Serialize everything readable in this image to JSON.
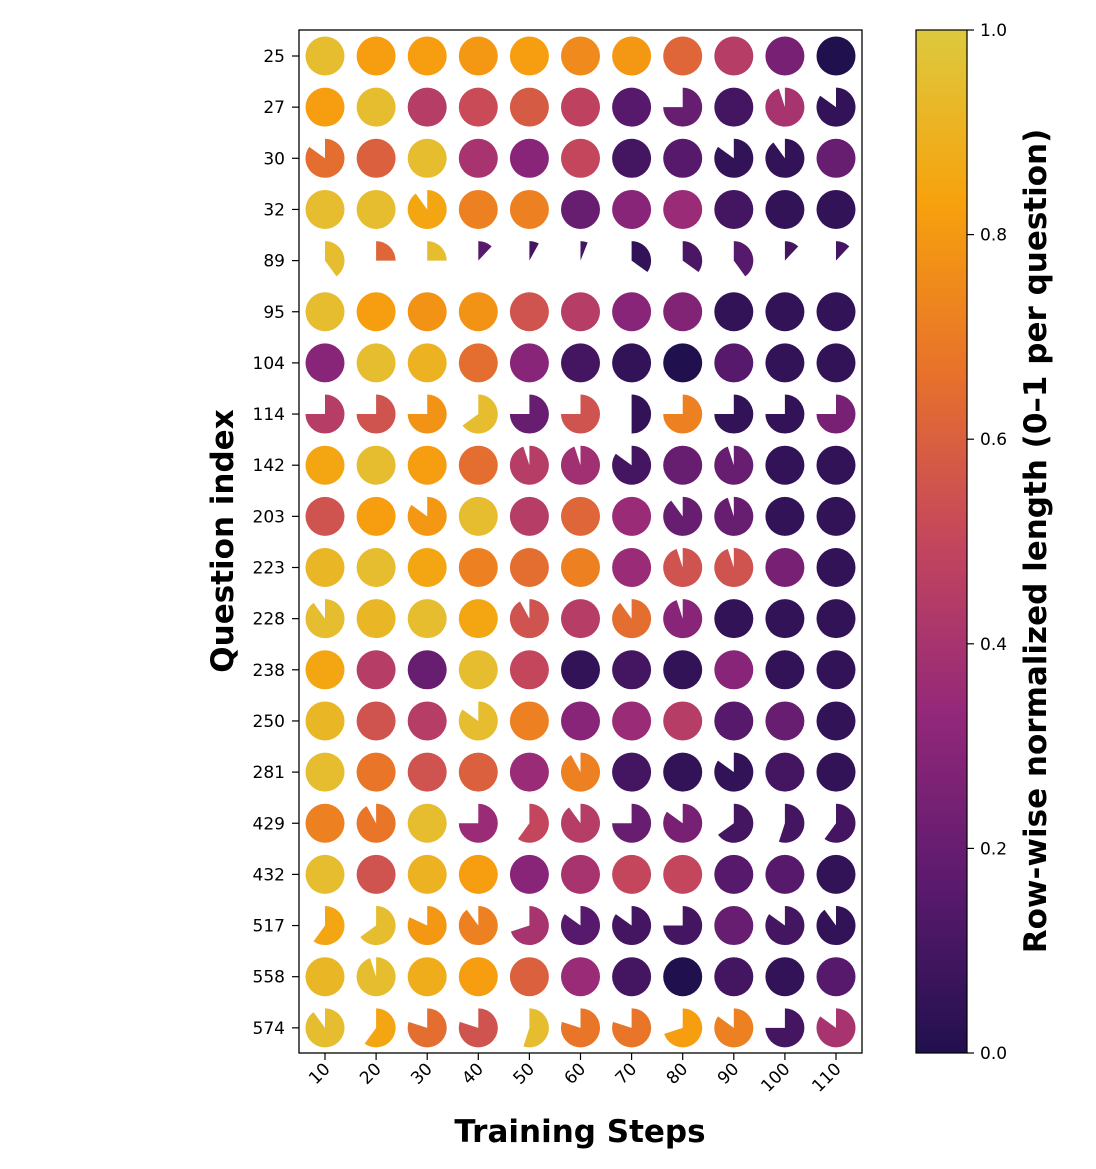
{
  "chart_data": {
    "type": "heatmap",
    "subtype": "pie-glyph grid",
    "xlabel": "Training Steps",
    "ylabel": "Question index",
    "x": [
      "10",
      "20",
      "30",
      "40",
      "50",
      "60",
      "70",
      "80",
      "90",
      "100",
      "110"
    ],
    "y": [
      "25",
      "27",
      "30",
      "32",
      "89",
      "95",
      "104",
      "114",
      "142",
      "203",
      "223",
      "228",
      "238",
      "250",
      "281",
      "429",
      "432",
      "517",
      "558",
      "574"
    ],
    "colorbar": {
      "label": "Row-wise normalized length (0–1 per question)",
      "range": [
        0,
        1
      ],
      "ticks": [
        "0.0",
        "0.2",
        "0.4",
        "0.6",
        "0.8",
        "1.0"
      ],
      "colormap": "plasma-like",
      "stops": [
        "#21104e",
        "#5c1a6e",
        "#94287a",
        "#c4465d",
        "#e8722a",
        "#f7a20d",
        "#ddc93e"
      ]
    },
    "values": [
      [
        0.95,
        0.82,
        0.82,
        0.8,
        0.82,
        0.75,
        0.8,
        0.62,
        0.45,
        0.25,
        0.0
      ],
      [
        0.82,
        0.95,
        0.45,
        0.52,
        0.58,
        0.48,
        0.15,
        0.2,
        0.1,
        0.4,
        0.05
      ],
      [
        0.65,
        0.6,
        0.95,
        0.4,
        0.3,
        0.5,
        0.1,
        0.15,
        0.05,
        0.05,
        0.2
      ],
      [
        0.95,
        0.95,
        0.85,
        0.72,
        0.72,
        0.2,
        0.3,
        0.35,
        0.1,
        0.05,
        0.05
      ],
      [
        0.95,
        0.62,
        0.95,
        0.15,
        0.1,
        0.1,
        0.05,
        0.12,
        0.15,
        0.1,
        0.1
      ],
      [
        0.95,
        0.82,
        0.78,
        0.78,
        0.55,
        0.45,
        0.3,
        0.28,
        0.05,
        0.05,
        0.05
      ],
      [
        0.3,
        0.95,
        0.9,
        0.65,
        0.3,
        0.1,
        0.05,
        0.0,
        0.15,
        0.05,
        0.05
      ],
      [
        0.45,
        0.55,
        0.78,
        0.95,
        0.2,
        0.55,
        0.05,
        0.72,
        0.05,
        0.05,
        0.25
      ],
      [
        0.85,
        0.95,
        0.82,
        0.65,
        0.45,
        0.38,
        0.1,
        0.2,
        0.2,
        0.05,
        0.05
      ],
      [
        0.55,
        0.82,
        0.8,
        0.95,
        0.45,
        0.62,
        0.35,
        0.2,
        0.2,
        0.05,
        0.05
      ],
      [
        0.92,
        0.95,
        0.85,
        0.72,
        0.65,
        0.72,
        0.35,
        0.55,
        0.55,
        0.25,
        0.05
      ],
      [
        0.95,
        0.92,
        0.95,
        0.85,
        0.55,
        0.45,
        0.65,
        0.3,
        0.05,
        0.05,
        0.05
      ],
      [
        0.85,
        0.45,
        0.2,
        0.95,
        0.5,
        0.05,
        0.1,
        0.05,
        0.3,
        0.05,
        0.05
      ],
      [
        0.92,
        0.55,
        0.45,
        0.95,
        0.72,
        0.3,
        0.35,
        0.45,
        0.15,
        0.2,
        0.05
      ],
      [
        0.95,
        0.68,
        0.55,
        0.6,
        0.35,
        0.72,
        0.1,
        0.05,
        0.05,
        0.1,
        0.05
      ],
      [
        0.72,
        0.68,
        0.95,
        0.35,
        0.5,
        0.45,
        0.2,
        0.25,
        0.1,
        0.1,
        0.1
      ],
      [
        0.95,
        0.55,
        0.9,
        0.82,
        0.3,
        0.4,
        0.5,
        0.5,
        0.15,
        0.15,
        0.05
      ],
      [
        0.85,
        0.95,
        0.8,
        0.72,
        0.4,
        0.15,
        0.1,
        0.1,
        0.2,
        0.1,
        0.05
      ],
      [
        0.92,
        0.95,
        0.88,
        0.82,
        0.6,
        0.35,
        0.1,
        0.0,
        0.1,
        0.05,
        0.15
      ],
      [
        0.95,
        0.85,
        0.65,
        0.55,
        0.95,
        0.68,
        0.68,
        0.82,
        0.72,
        0.1,
        0.4
      ]
    ],
    "fractions": [
      [
        1,
        1,
        1,
        1,
        1,
        1,
        1,
        1,
        1,
        1,
        1
      ],
      [
        1,
        1,
        1,
        1,
        1,
        1,
        1,
        0.75,
        1,
        0.95,
        0.85
      ],
      [
        0.85,
        1,
        1,
        1,
        1,
        1,
        1,
        1,
        0.85,
        0.9,
        1
      ],
      [
        1,
        1,
        0.9,
        1,
        1,
        1,
        1,
        1,
        1,
        1,
        1
      ],
      [
        0.4,
        0.25,
        0.25,
        0.12,
        0.08,
        0.06,
        0.35,
        0.35,
        0.4,
        0.12,
        0.12
      ],
      [
        1,
        1,
        1,
        1,
        1,
        1,
        1,
        1,
        1,
        1,
        1
      ],
      [
        1,
        1,
        1,
        1,
        1,
        1,
        1,
        1,
        1,
        1,
        1
      ],
      [
        0.75,
        0.75,
        0.75,
        0.65,
        0.75,
        0.75,
        0.5,
        0.75,
        0.75,
        0.75,
        0.75
      ],
      [
        1,
        1,
        1,
        1,
        0.95,
        0.95,
        0.85,
        1,
        0.95,
        1,
        1
      ],
      [
        1,
        1,
        0.85,
        1,
        1,
        1,
        1,
        0.9,
        0.95,
        1,
        1
      ],
      [
        1,
        1,
        1,
        1,
        1,
        1,
        1,
        0.95,
        0.95,
        1,
        1
      ],
      [
        0.9,
        1,
        1,
        1,
        0.92,
        1,
        0.9,
        0.95,
        1,
        1,
        1
      ],
      [
        1,
        1,
        1,
        1,
        1,
        1,
        1,
        1,
        1,
        1,
        1
      ],
      [
        1,
        1,
        1,
        0.85,
        1,
        1,
        1,
        1,
        1,
        1,
        1
      ],
      [
        1,
        1,
        1,
        1,
        1,
        0.92,
        1,
        1,
        0.85,
        1,
        1
      ],
      [
        1,
        0.92,
        1,
        0.75,
        0.6,
        0.9,
        0.75,
        0.85,
        0.65,
        0.55,
        0.6
      ],
      [
        1,
        1,
        1,
        1,
        1,
        1,
        1,
        1,
        1,
        1,
        1
      ],
      [
        0.6,
        0.65,
        0.82,
        0.9,
        0.7,
        0.85,
        0.85,
        0.75,
        1,
        0.85,
        0.9
      ],
      [
        1,
        0.95,
        1,
        1,
        1,
        1,
        1,
        1,
        1,
        1,
        1
      ],
      [
        0.9,
        0.6,
        0.8,
        0.8,
        0.55,
        0.8,
        0.8,
        0.7,
        0.85,
        0.75,
        0.85
      ]
    ]
  }
}
